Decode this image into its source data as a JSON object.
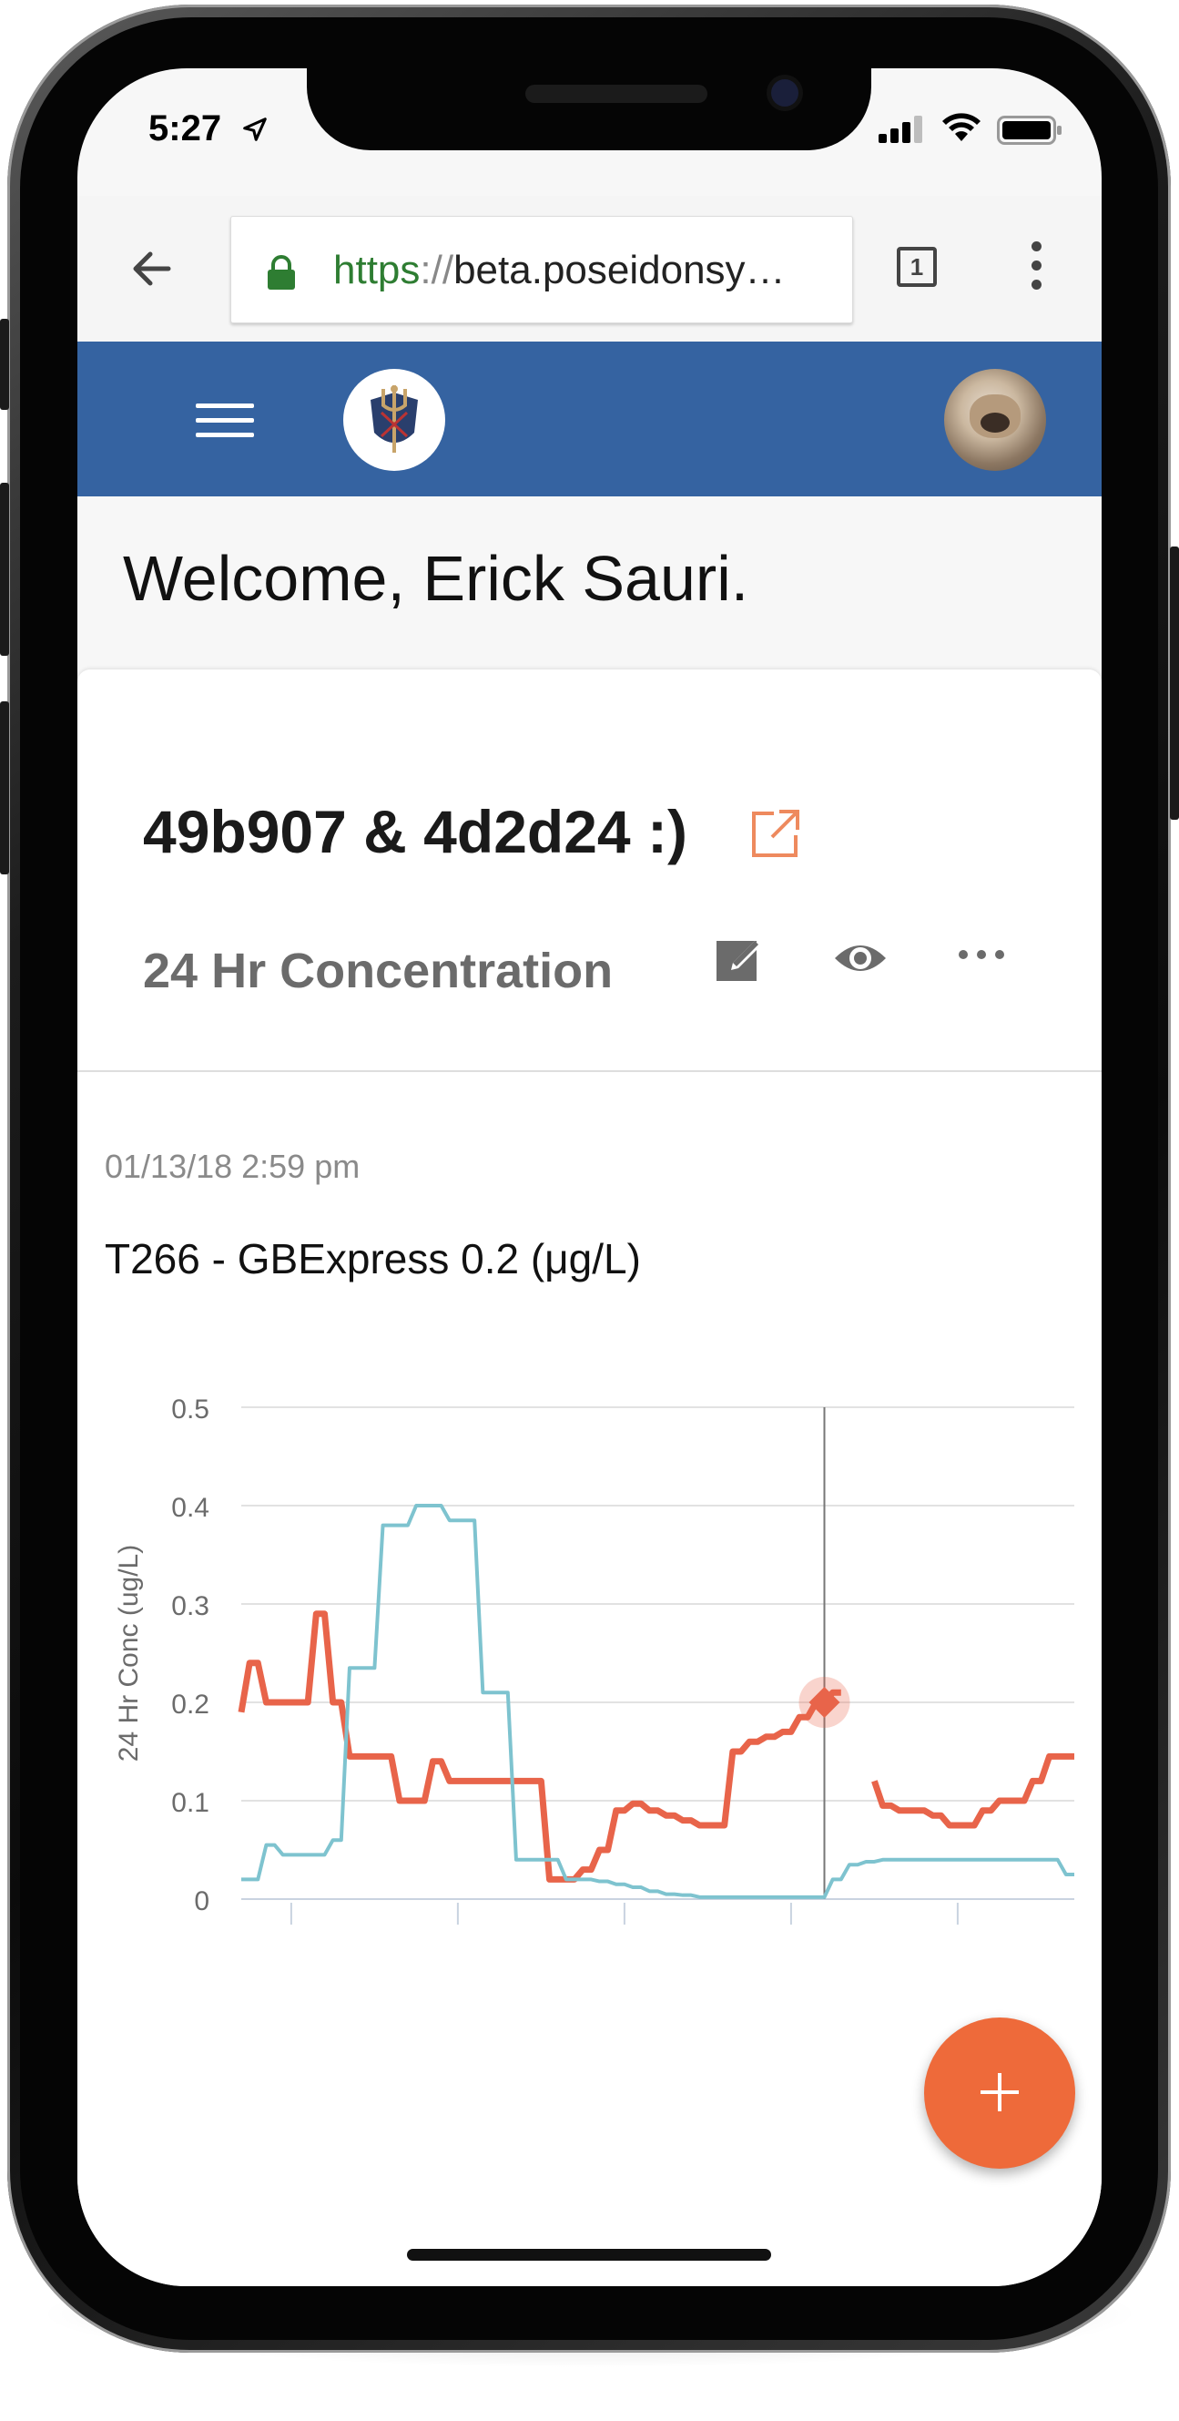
{
  "status_bar": {
    "time": "5:27"
  },
  "browser": {
    "url_scheme": "https",
    "url_sep": "://",
    "url_host": "beta.poseidonsy…",
    "tab_count": "1"
  },
  "header": {
    "welcome": "Welcome, Erick Sauri."
  },
  "card": {
    "title": "49b907 & 4d2d24 :)",
    "subtitle": "24 Hr Concentration",
    "timestamp": "01/13/18 2:59 pm",
    "series_title": "T266 - GBExpress 0.2 (μg/L)"
  },
  "colors": {
    "appbar": "#3563a1",
    "accent": "#ee6a3a",
    "series_red": "#e8644a",
    "series_blue": "#7ec3cf"
  },
  "chart_data": {
    "type": "line",
    "ylabel": "24 Hr Conc (ug/L)",
    "ylim": [
      0,
      0.5
    ],
    "yticks": [
      "0",
      "0.1",
      "0.2",
      "0.3",
      "0.4",
      "0.5"
    ],
    "x": [
      0,
      1,
      2,
      3,
      4,
      5,
      6,
      7,
      8,
      9,
      10,
      11,
      12,
      13,
      14,
      15,
      16,
      17,
      18,
      19,
      20,
      21,
      22,
      23,
      24,
      25,
      26,
      27,
      28,
      29,
      30,
      31,
      32,
      33,
      34,
      35,
      36,
      37,
      38,
      39,
      40,
      41,
      42,
      43,
      44,
      45,
      46,
      47,
      48,
      49,
      50
    ],
    "series": [
      {
        "color": "#e8644a",
        "values": [
          0.19,
          0.24,
          0.2,
          0.2,
          0.2,
          0.29,
          0.2,
          0.145,
          0.145,
          0.145,
          0.1,
          0.1,
          0.14,
          0.12,
          0.12,
          0.12,
          0.12,
          0.12,
          0.12,
          0.02,
          0.02,
          0.03,
          0.05,
          0.09,
          0.097,
          0.09,
          0.085,
          0.08,
          0.075,
          0.075,
          0.15,
          0.16,
          0.165,
          0.17,
          0.185,
          0.2,
          0.21,
          null,
          0.12,
          0.095,
          0.09,
          0.09,
          0.085,
          0.075,
          0.075,
          0.09,
          0.1,
          0.1,
          0.12,
          0.145,
          0.145
        ]
      },
      {
        "color": "#7ec3cf",
        "values": [
          0.02,
          0.02,
          0.055,
          0.045,
          0.045,
          0.045,
          0.06,
          0.235,
          0.235,
          0.38,
          0.38,
          0.4,
          0.4,
          0.385,
          0.385,
          0.21,
          0.21,
          0.04,
          0.04,
          0.04,
          0.02,
          0.02,
          0.018,
          0.015,
          0.012,
          0.008,
          0.005,
          0.004,
          0.002,
          0.002,
          0.002,
          0.002,
          0.002,
          0.002,
          0.002,
          0.002,
          0.02,
          0.035,
          0.038,
          0.04,
          0.04,
          0.04,
          0.04,
          0.04,
          0.04,
          0.04,
          0.04,
          0.04,
          0.04,
          0.04,
          0.025
        ]
      }
    ],
    "cursor_index": 35
  }
}
